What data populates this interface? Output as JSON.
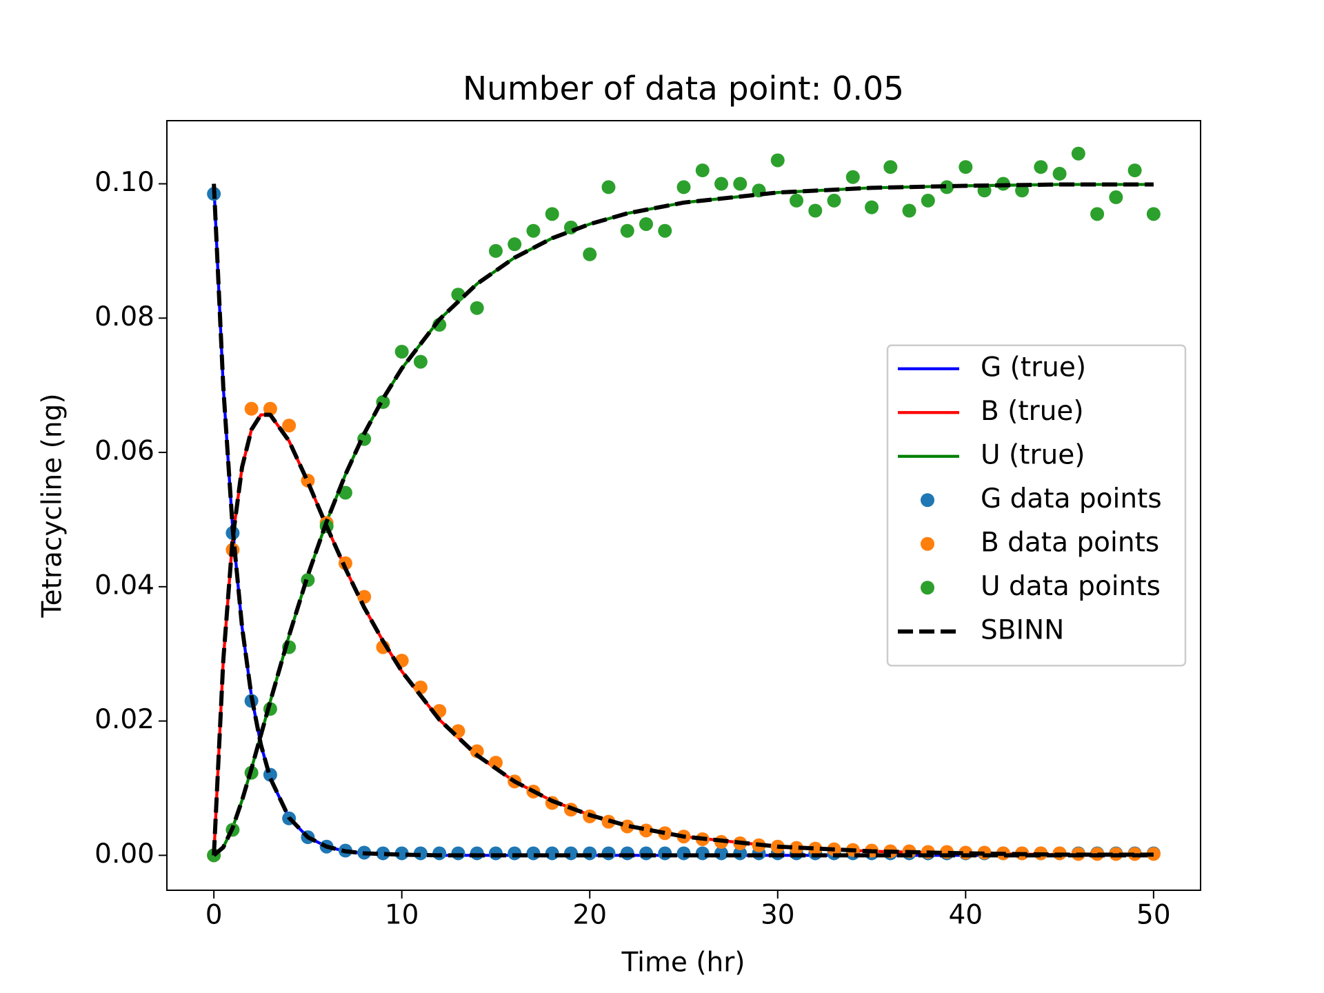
{
  "chart_data": {
    "type": "line",
    "title": "Number of data point: 0.05",
    "xlabel": "Time (hr)",
    "ylabel": "Tetracycline (ng)",
    "xlim": [
      -2.5,
      52.5
    ],
    "ylim": [
      -0.0052,
      0.1094
    ],
    "xticks": [
      0,
      10,
      20,
      30,
      40,
      50
    ],
    "yticks": [
      {
        "value": 0,
        "label": "0.00"
      },
      {
        "value": 0.02,
        "label": "0.02"
      },
      {
        "value": 0.04,
        "label": "0.04"
      },
      {
        "value": 0.06,
        "label": "0.06"
      },
      {
        "value": 0.08,
        "label": "0.08"
      },
      {
        "value": 0.1,
        "label": "0.10"
      }
    ],
    "legend": "center right",
    "x": [
      0,
      0.5,
      1,
      1.5,
      2,
      2.5,
      3,
      4,
      5,
      6,
      7,
      8,
      9,
      10,
      12,
      14,
      16,
      18,
      20,
      22,
      25,
      30,
      35,
      40,
      45,
      50
    ],
    "series": [
      {
        "name": "G (true)",
        "kind": "line",
        "color": "#0000ff",
        "values": [
          0.1,
          0.0698,
          0.0487,
          0.034,
          0.0237,
          0.0165,
          0.0115,
          0.0056,
          0.0027,
          0.0013,
          0.0006,
          0.0003,
          0.0002,
          0.0001,
          0,
          0,
          0,
          0,
          0,
          0,
          0,
          0,
          0,
          0,
          0,
          0
        ]
      },
      {
        "name": "B (true)",
        "kind": "line",
        "color": "#ff0000",
        "values": [
          0,
          0.029,
          0.0472,
          0.0578,
          0.0634,
          0.0656,
          0.0656,
          0.0617,
          0.0556,
          0.049,
          0.0427,
          0.0369,
          0.0319,
          0.0274,
          0.0202,
          0.0149,
          0.011,
          0.0081,
          0.006,
          0.0044,
          0.0028,
          0.0013,
          0.0006,
          0.0003,
          0.0001,
          0.0001
        ]
      },
      {
        "name": "U (true)",
        "kind": "line",
        "color": "#008000",
        "values": [
          0,
          0.0012,
          0.0041,
          0.0082,
          0.0129,
          0.0179,
          0.0229,
          0.0327,
          0.0417,
          0.0497,
          0.0567,
          0.0628,
          0.068,
          0.0725,
          0.0798,
          0.0851,
          0.089,
          0.0919,
          0.094,
          0.0956,
          0.0972,
          0.0987,
          0.0994,
          0.0997,
          0.0999,
          0.0999
        ]
      },
      {
        "name": "G data points",
        "kind": "scatter",
        "color": "#1f77b4",
        "x": [
          0,
          1,
          2,
          3,
          4,
          5,
          6,
          7,
          8,
          9,
          10,
          11,
          12,
          13,
          14,
          15,
          16,
          17,
          18,
          19,
          20,
          21,
          22,
          23,
          24,
          25,
          26,
          27,
          28,
          29,
          30,
          31,
          32,
          33,
          34,
          35,
          36,
          37,
          38,
          39,
          40,
          41,
          42,
          43,
          44,
          45,
          46,
          47,
          48,
          49,
          50
        ],
        "values": [
          0.0985,
          0.048,
          0.023,
          0.012,
          0.0055,
          0.0027,
          0.0013,
          0.0007,
          0.0004,
          0.0003,
          0.0003,
          0.0003,
          0.0003,
          0.0003,
          0.0003,
          0.0003,
          0.0003,
          0.0003,
          0.0003,
          0.0003,
          0.0003,
          0.0003,
          0.0003,
          0.0003,
          0.0003,
          0.0003,
          0.0003,
          0.0003,
          0.0003,
          0.0003,
          0.0003,
          0.0003,
          0.0003,
          0.0003,
          0.0003,
          0.0003,
          0.0003,
          0.0003,
          0.0003,
          0.0003,
          0.0003,
          0.0003,
          0.0003,
          0.0003,
          0.0003,
          0.0003,
          0.0003,
          0.0003,
          0.0003,
          0.0003,
          0.0003
        ]
      },
      {
        "name": "B data points",
        "kind": "scatter",
        "color": "#ff7f0e",
        "x": [
          0,
          1,
          2,
          3,
          4,
          5,
          6,
          7,
          8,
          9,
          10,
          11,
          12,
          13,
          14,
          15,
          16,
          17,
          18,
          19,
          20,
          21,
          22,
          23,
          24,
          25,
          26,
          27,
          28,
          29,
          30,
          31,
          32,
          33,
          34,
          35,
          36,
          37,
          38,
          39,
          40,
          41,
          42,
          43,
          44,
          45,
          46,
          47,
          48,
          49,
          50
        ],
        "values": [
          0,
          0.0455,
          0.0665,
          0.0665,
          0.064,
          0.0558,
          0.0495,
          0.0435,
          0.0385,
          0.031,
          0.029,
          0.025,
          0.0215,
          0.0185,
          0.0155,
          0.0138,
          0.011,
          0.0095,
          0.0078,
          0.0068,
          0.0058,
          0.005,
          0.0043,
          0.0037,
          0.0033,
          0.0028,
          0.0024,
          0.002,
          0.0018,
          0.0015,
          0.0013,
          0.0011,
          0.001,
          0.0009,
          0.0008,
          0.0007,
          0.0006,
          0.0006,
          0.0005,
          0.0005,
          0.0004,
          0.0004,
          0.0003,
          0.0003,
          0.0003,
          0.0003,
          0.0002,
          0.0002,
          0.0002,
          0.0002,
          0.0002
        ]
      },
      {
        "name": "U data points",
        "kind": "scatter",
        "color": "#2ca02c",
        "x": [
          0,
          1,
          2,
          3,
          4,
          5,
          6,
          7,
          8,
          9,
          10,
          11,
          12,
          13,
          14,
          15,
          16,
          17,
          18,
          19,
          20,
          21,
          22,
          23,
          24,
          25,
          26,
          27,
          28,
          29,
          30,
          31,
          32,
          33,
          34,
          35,
          36,
          37,
          38,
          39,
          40,
          41,
          42,
          43,
          44,
          45,
          46,
          47,
          48,
          49,
          50
        ],
        "values": [
          0,
          0.0038,
          0.0123,
          0.0218,
          0.031,
          0.041,
          0.049,
          0.054,
          0.062,
          0.0675,
          0.075,
          0.0735,
          0.079,
          0.0835,
          0.0815,
          0.09,
          0.091,
          0.093,
          0.0955,
          0.0935,
          0.0895,
          0.0995,
          0.093,
          0.094,
          0.093,
          0.0995,
          0.102,
          0.1,
          0.1,
          0.099,
          0.1035,
          0.0975,
          0.096,
          0.0975,
          0.101,
          0.0965,
          0.1025,
          0.096,
          0.0975,
          0.0995,
          0.1025,
          0.099,
          0.1,
          0.099,
          0.1025,
          0.1015,
          0.1045,
          0.0955,
          0.098,
          0.102,
          0.0955
        ]
      },
      {
        "name": "SBINN",
        "kind": "dashed",
        "color": "#000000",
        "values": [
          [
            0.1,
            0.0698,
            0.0487,
            0.034,
            0.0237,
            0.0165,
            0.0115,
            0.0056,
            0.0027,
            0.0013,
            0.0006,
            0.0003,
            0.0002,
            0.0001,
            0,
            0,
            0,
            0,
            0,
            0,
            0,
            0,
            0,
            0,
            0,
            0
          ],
          [
            0,
            0.029,
            0.0472,
            0.0578,
            0.0634,
            0.0656,
            0.0656,
            0.0617,
            0.0556,
            0.049,
            0.0427,
            0.0369,
            0.0319,
            0.0274,
            0.0202,
            0.0149,
            0.011,
            0.0081,
            0.006,
            0.0044,
            0.0028,
            0.0013,
            0.0006,
            0.0003,
            0.0001,
            0.0001
          ],
          [
            0,
            0.0012,
            0.0041,
            0.0082,
            0.0129,
            0.0179,
            0.0229,
            0.0327,
            0.0417,
            0.0497,
            0.0567,
            0.0628,
            0.068,
            0.0725,
            0.0798,
            0.0851,
            0.089,
            0.0919,
            0.094,
            0.0956,
            0.0972,
            0.0987,
            0.0994,
            0.0997,
            0.0999,
            0.0999
          ]
        ]
      }
    ]
  }
}
